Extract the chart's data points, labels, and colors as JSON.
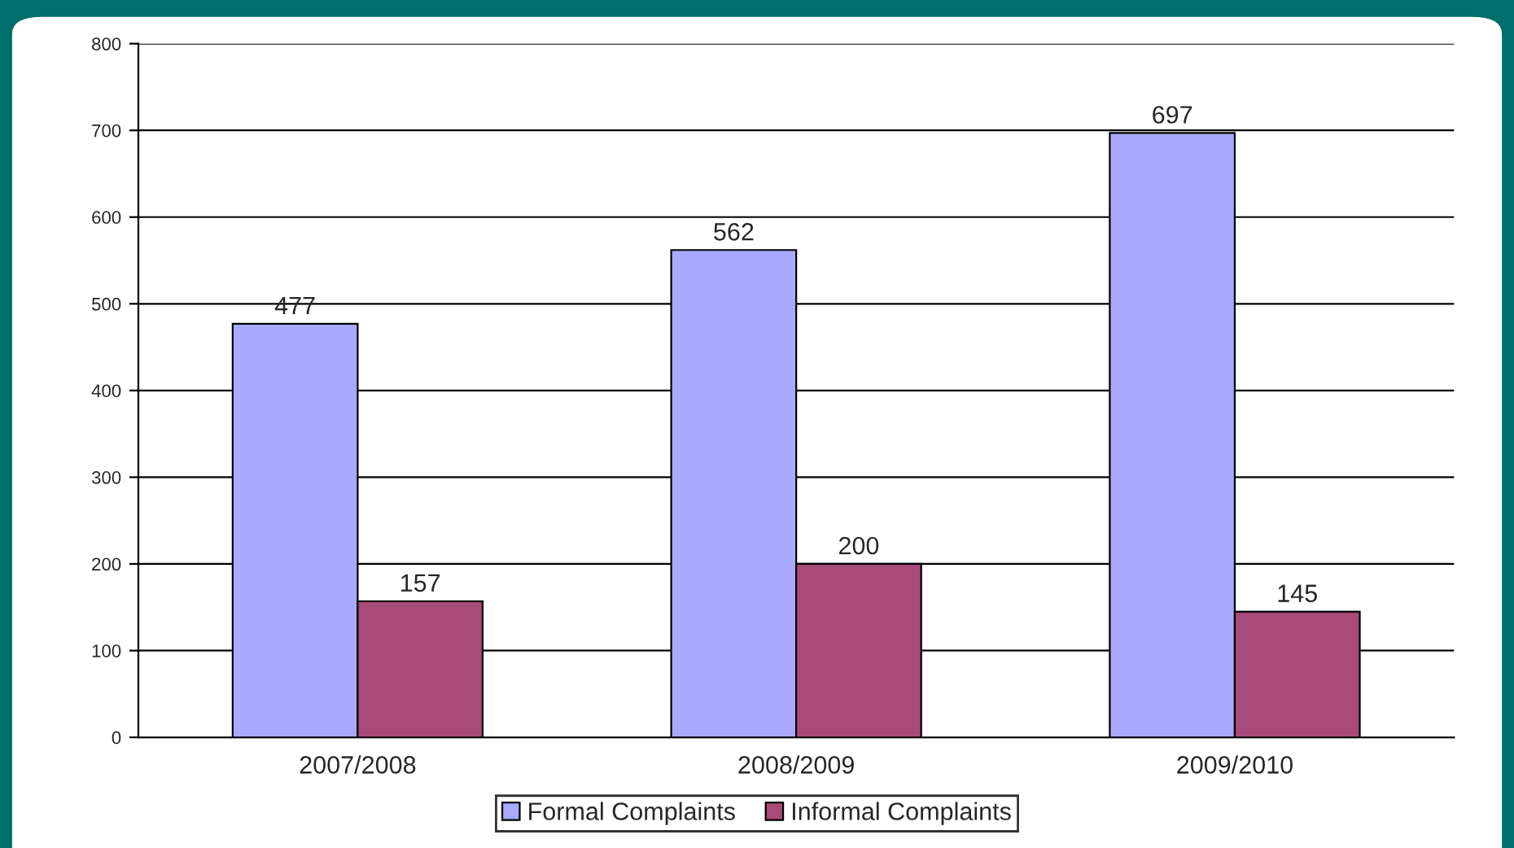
{
  "chart_data": {
    "type": "bar",
    "categories": [
      "2007/2008",
      "2008/2009",
      "2009/2010"
    ],
    "series": [
      {
        "name": "Formal Complaints",
        "color": "#a9aaff",
        "values": [
          477,
          562,
          697
        ]
      },
      {
        "name": "Informal Complaints",
        "color": "#a84b78",
        "values": [
          157,
          200,
          145
        ]
      }
    ],
    "ylim": [
      0,
      800
    ],
    "yticks": [
      0,
      100,
      200,
      300,
      400,
      500,
      600,
      700,
      800
    ],
    "grid": "y",
    "legend": "bottom",
    "data_labels": true
  }
}
